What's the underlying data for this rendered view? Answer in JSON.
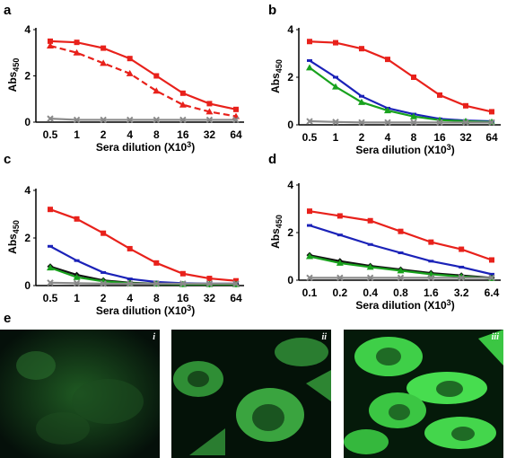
{
  "colors": {
    "red": "#e8211b",
    "blue": "#1b22b8",
    "green": "#18a21d",
    "black": "#111111",
    "gray": "#8a8a8a",
    "fluor": "#22d43a"
  },
  "chart_data": [
    {
      "panel": "a",
      "type": "line",
      "categories": [
        "0.5",
        "1",
        "2",
        "4",
        "8",
        "16",
        "32",
        "64"
      ],
      "xlabel": "Sera dilution (X10³)",
      "ylabel": "Abs450",
      "ylim": [
        0,
        4
      ],
      "yticks": [
        "0",
        "2",
        "4"
      ],
      "series": [
        {
          "color": "red",
          "marker": "square",
          "dash": false,
          "values": [
            3.5,
            3.45,
            3.2,
            2.75,
            2.0,
            1.25,
            0.8,
            0.55
          ]
        },
        {
          "color": "red",
          "marker": "triangle",
          "dash": true,
          "values": [
            3.3,
            3.0,
            2.55,
            2.1,
            1.35,
            0.75,
            0.45,
            0.25
          ]
        },
        {
          "color": "gray",
          "marker": "x",
          "dash": false,
          "values": [
            0.15,
            0.1,
            0.1,
            0.1,
            0.1,
            0.1,
            0.1,
            0.1
          ]
        }
      ]
    },
    {
      "panel": "b",
      "type": "line",
      "categories": [
        "0.5",
        "1",
        "2",
        "4",
        "8",
        "16",
        "32",
        "64"
      ],
      "xlabel": "Sera dilution (X10³)",
      "ylabel": "Abs450",
      "ylim": [
        0,
        4
      ],
      "yticks": [
        "0",
        "2",
        "4"
      ],
      "series": [
        {
          "color": "red",
          "marker": "square",
          "dash": false,
          "values": [
            3.5,
            3.45,
            3.2,
            2.75,
            2.0,
            1.25,
            0.8,
            0.55
          ]
        },
        {
          "color": "blue",
          "marker": "line",
          "dash": false,
          "values": [
            2.7,
            2.0,
            1.2,
            0.7,
            0.45,
            0.25,
            0.18,
            0.15
          ]
        },
        {
          "color": "green",
          "marker": "triangle",
          "dash": false,
          "values": [
            2.4,
            1.6,
            0.95,
            0.6,
            0.35,
            0.2,
            0.15,
            0.12
          ]
        },
        {
          "color": "gray",
          "marker": "x",
          "dash": false,
          "values": [
            0.15,
            0.12,
            0.1,
            0.1,
            0.1,
            0.1,
            0.1,
            0.1
          ]
        }
      ]
    },
    {
      "panel": "c",
      "type": "line",
      "categories": [
        "0.5",
        "1",
        "2",
        "4",
        "8",
        "16",
        "32",
        "64"
      ],
      "xlabel": "Sera dilution (X10³)",
      "ylabel": "Abs450",
      "ylim": [
        0,
        4
      ],
      "yticks": [
        "0",
        "2",
        "4"
      ],
      "series": [
        {
          "color": "red",
          "marker": "square",
          "dash": false,
          "values": [
            3.2,
            2.8,
            2.2,
            1.55,
            0.95,
            0.5,
            0.3,
            0.2
          ]
        },
        {
          "color": "blue",
          "marker": "line",
          "dash": false,
          "values": [
            1.65,
            1.05,
            0.55,
            0.28,
            0.15,
            0.1,
            0.08,
            0.08
          ]
        },
        {
          "color": "black",
          "marker": "diamond",
          "dash": false,
          "values": [
            0.8,
            0.45,
            0.22,
            0.12,
            0.08,
            0.06,
            0.05,
            0.05
          ]
        },
        {
          "color": "green",
          "marker": "triangle",
          "dash": false,
          "values": [
            0.75,
            0.35,
            0.18,
            0.1,
            0.07,
            0.05,
            0.05,
            0.05
          ]
        },
        {
          "color": "gray",
          "marker": "x",
          "dash": false,
          "values": [
            0.12,
            0.1,
            0.08,
            0.08,
            0.08,
            0.08,
            0.08,
            0.08
          ]
        }
      ]
    },
    {
      "panel": "d",
      "type": "line",
      "categories": [
        "0.1",
        "0.2",
        "0.4",
        "0.8",
        "1.6",
        "3.2",
        "6.4"
      ],
      "xlabel": "Sera dilution (X10³)",
      "ylabel": "Abs450",
      "ylim": [
        0,
        4
      ],
      "yticks": [
        "0",
        "2",
        "4"
      ],
      "series": [
        {
          "color": "red",
          "marker": "square",
          "dash": false,
          "values": [
            2.9,
            2.7,
            2.5,
            2.05,
            1.6,
            1.3,
            0.85
          ]
        },
        {
          "color": "blue",
          "marker": "line",
          "dash": false,
          "values": [
            2.3,
            1.9,
            1.5,
            1.15,
            0.8,
            0.55,
            0.25
          ]
        },
        {
          "color": "black",
          "marker": "diamond",
          "dash": false,
          "values": [
            1.05,
            0.8,
            0.6,
            0.45,
            0.3,
            0.2,
            0.1
          ]
        },
        {
          "color": "green",
          "marker": "triangle",
          "dash": false,
          "values": [
            1.0,
            0.72,
            0.55,
            0.4,
            0.25,
            0.15,
            0.08
          ]
        },
        {
          "color": "gray",
          "marker": "x",
          "dash": false,
          "values": [
            0.1,
            0.1,
            0.1,
            0.1,
            0.1,
            0.1,
            0.1
          ]
        }
      ]
    }
  ],
  "micrographs": {
    "panel_label": "e",
    "items": [
      {
        "label": "i",
        "brightness": 0.2
      },
      {
        "label": "ii",
        "brightness": 0.55
      },
      {
        "label": "iii",
        "brightness": 0.9
      }
    ]
  }
}
